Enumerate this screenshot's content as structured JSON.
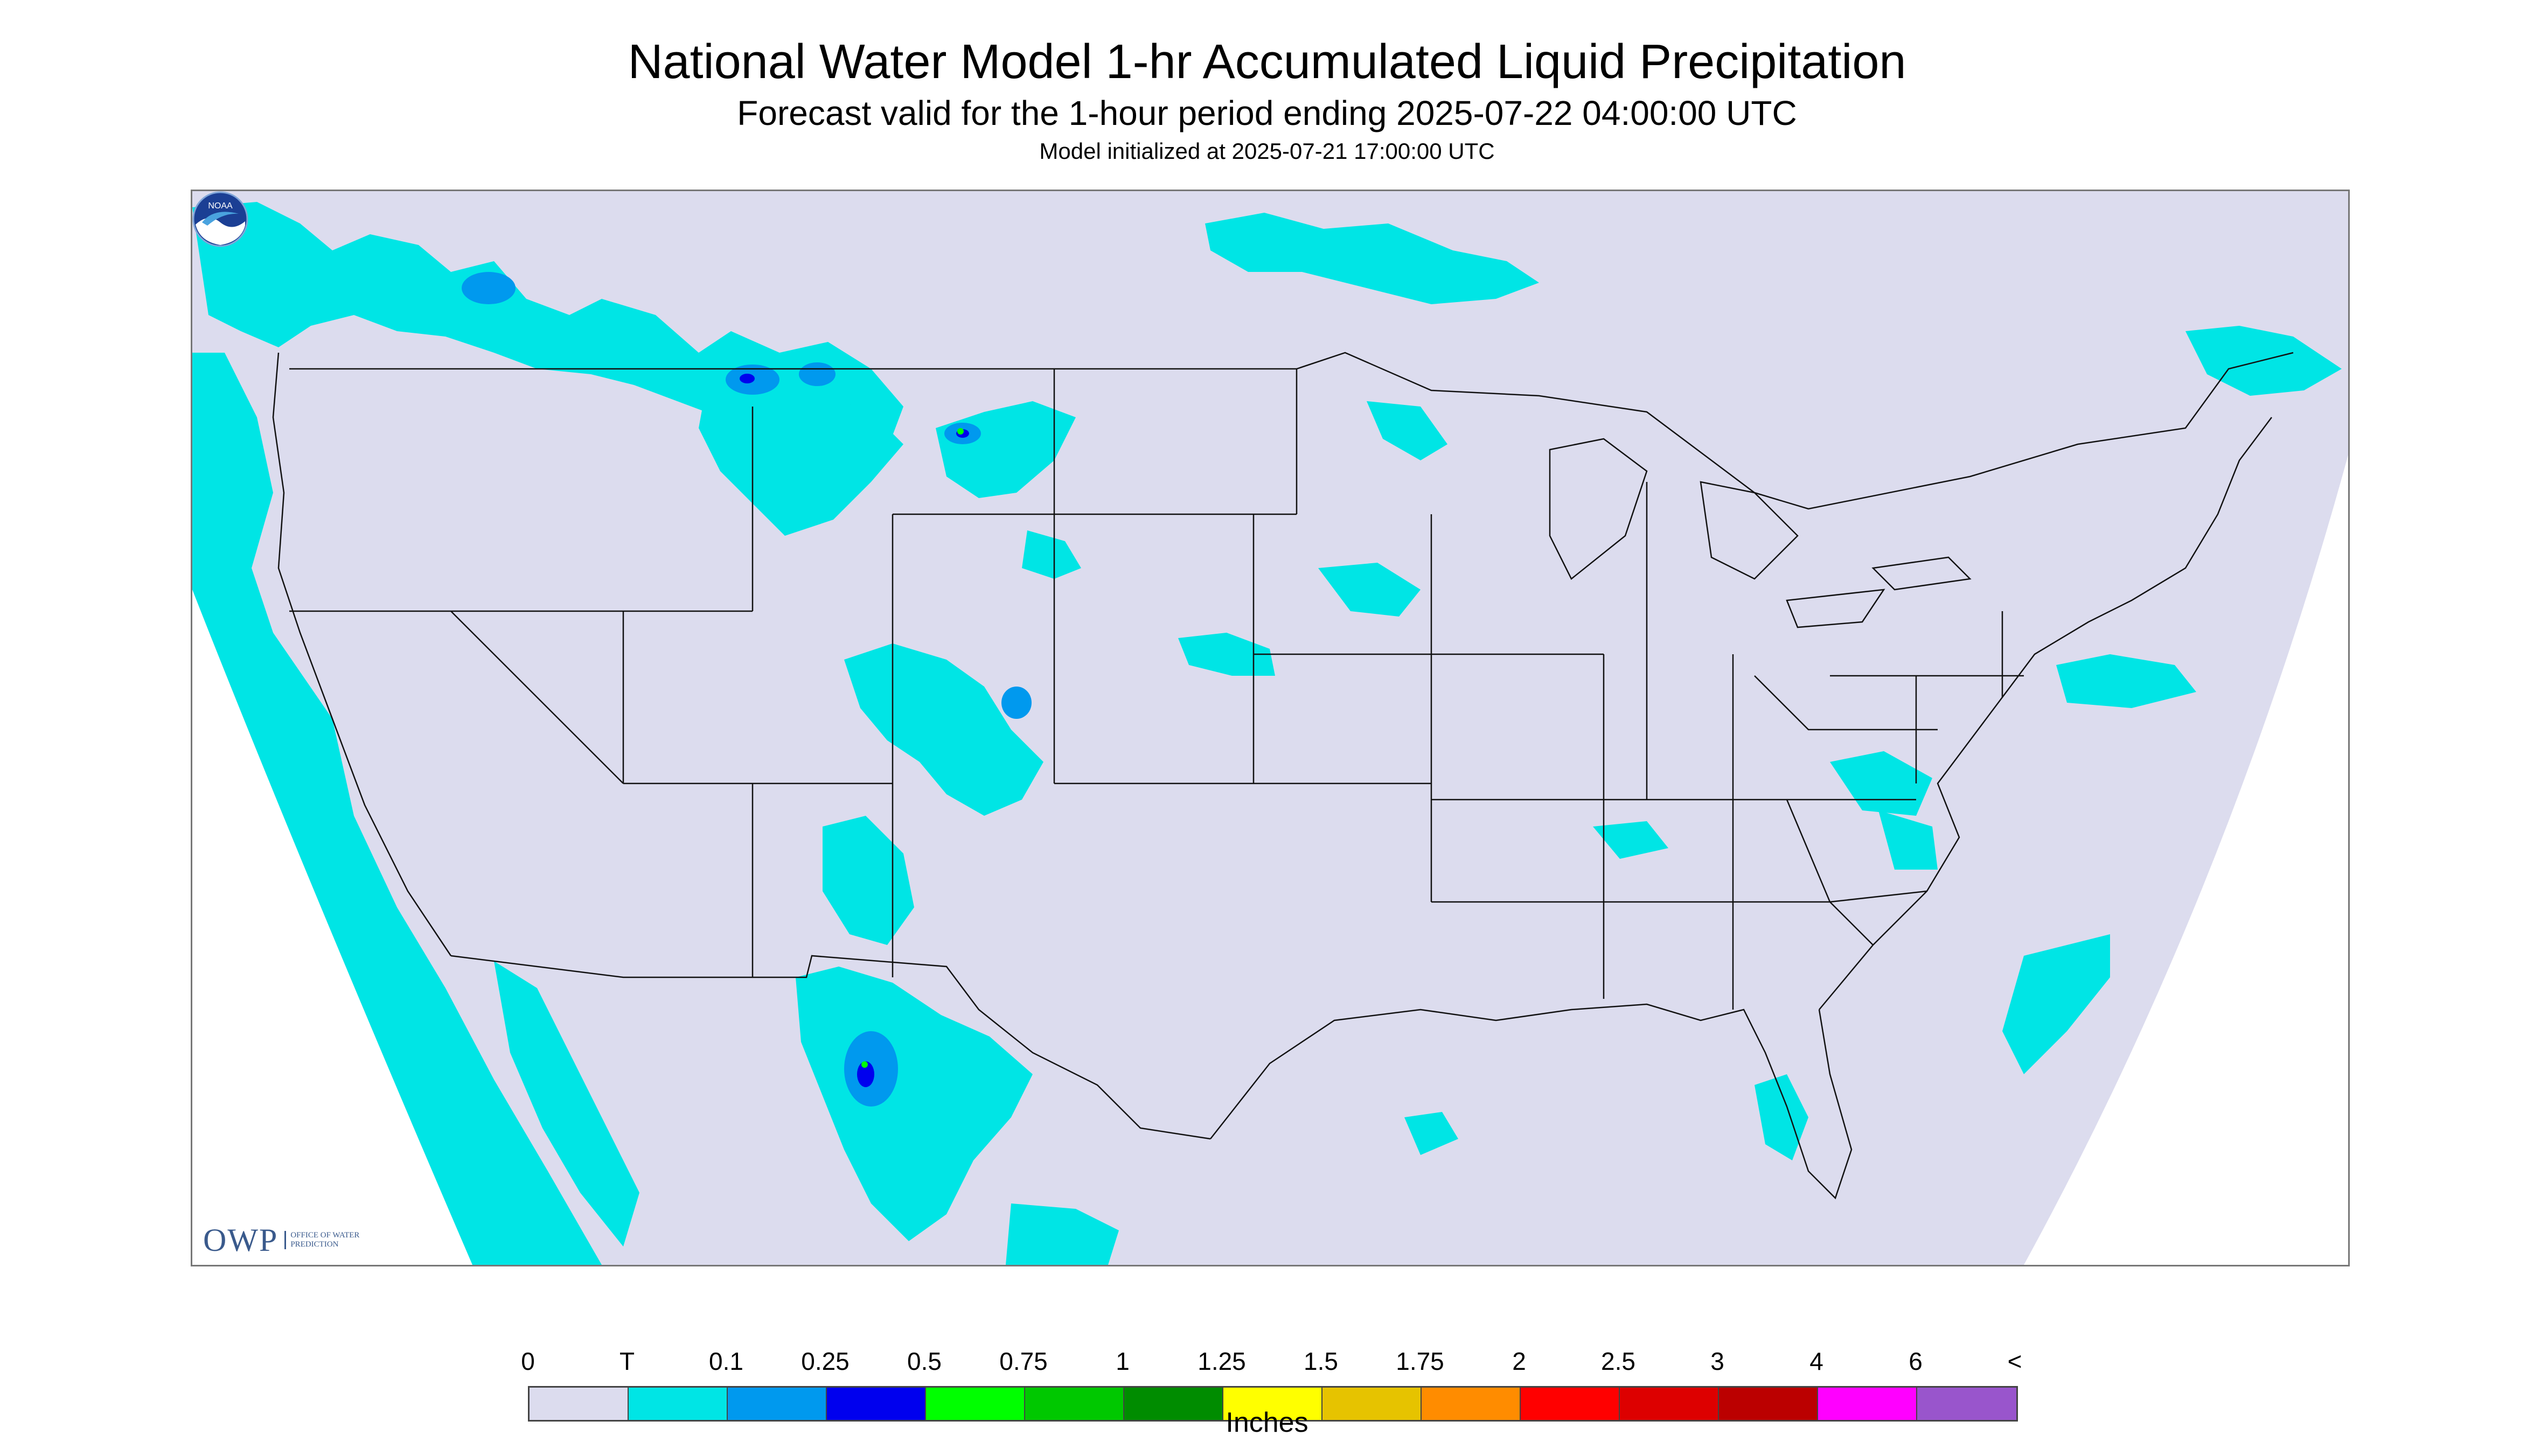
{
  "header": {
    "title": "National Water Model 1-hr Accumulated Liquid Precipitation",
    "subtitle": "Forecast valid for the 1-hour period ending 2025-07-22 04:00:00 UTC",
    "init": "Model initialized at 2025-07-21 17:00:00 UTC"
  },
  "map": {
    "background_color": "#dcdcee",
    "outside_color": "#ffffff",
    "boundary_color": "#111111"
  },
  "logos": {
    "owp_mark": "OWP",
    "owp_text": "Office of Water Prediction",
    "noaa_text": "NOAA"
  },
  "legend": {
    "ticks": [
      "0",
      "T",
      "0.1",
      "0.25",
      "0.5",
      "0.75",
      "1",
      "1.25",
      "1.5",
      "1.75",
      "2",
      "2.5",
      "3",
      "4",
      "6",
      "<"
    ],
    "colors": [
      "#dcdcee",
      "#00e5e5",
      "#0099ee",
      "#0000ee",
      "#00ff00",
      "#00c800",
      "#008c00",
      "#ffff00",
      "#e6c300",
      "#ff8c00",
      "#ff0000",
      "#dd0000",
      "#bb0000",
      "#ff00ff",
      "#9955cc"
    ],
    "unit": "Inches"
  }
}
